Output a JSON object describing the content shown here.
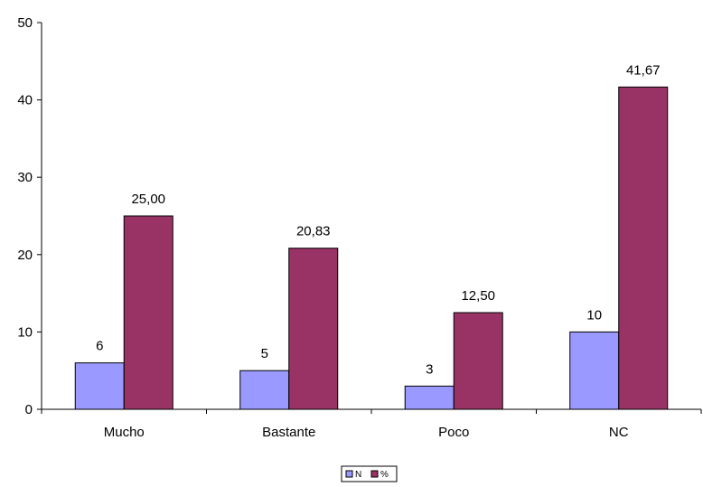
{
  "chart_data": {
    "type": "bar",
    "title": "",
    "xlabel": "",
    "ylabel": "",
    "categories": [
      "Mucho",
      "Bastante",
      "Poco",
      "NC"
    ],
    "series": [
      {
        "name": "N",
        "values": [
          6,
          5,
          3,
          10
        ],
        "labels": [
          "6",
          "5",
          "3",
          "10"
        ],
        "color": "#9999ff"
      },
      {
        "name": "%",
        "values": [
          25.0,
          20.83,
          12.5,
          41.67
        ],
        "labels": [
          "25,00",
          "20,83",
          "12,50",
          "41,67"
        ],
        "color": "#993366"
      }
    ],
    "ylim": [
      0,
      50
    ],
    "yticks": [
      0,
      10,
      20,
      30,
      40,
      50
    ],
    "ytick_labels": [
      "0",
      "10",
      "20",
      "30",
      "40",
      "50"
    ],
    "grid": false,
    "legend_position": "bottom",
    "legend_box": true,
    "bar_outline_color": "#000000"
  }
}
